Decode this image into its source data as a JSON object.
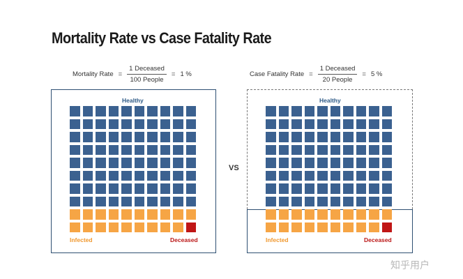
{
  "title": "Mortality Rate vs Case Fatality Rate",
  "left_panel": {
    "formula": {
      "label": "Mortality Rate",
      "eq": "=",
      "numerator": "1 Deceased",
      "denominator": "100 People",
      "eq2": "=",
      "result": "1 %"
    },
    "healthy_label": "Healthy",
    "infected_label": "Infected",
    "deceased_label": "Deceased",
    "grid": {
      "rows": 10,
      "cols": 10,
      "healthy_rows": 8,
      "infected_rows": 2,
      "deceased": 1
    }
  },
  "right_panel": {
    "formula": {
      "label": "Case Fatality Rate",
      "eq": "=",
      "numerator": "1 Deceased",
      "denominator": "20 People",
      "eq2": "=",
      "result": "5 %"
    },
    "healthy_label": "Healthy",
    "infected_label": "Infected",
    "deceased_label": "Deceased",
    "grid": {
      "rows": 10,
      "cols": 10,
      "healthy_rows": 8,
      "infected_rows": 2,
      "deceased": 1
    }
  },
  "vs_label": "VS",
  "watermark": "知乎用户",
  "colors": {
    "healthy": "#3b6190",
    "infected": "#f6a545",
    "deceased": "#c01616",
    "frame": "#2e4f72"
  }
}
